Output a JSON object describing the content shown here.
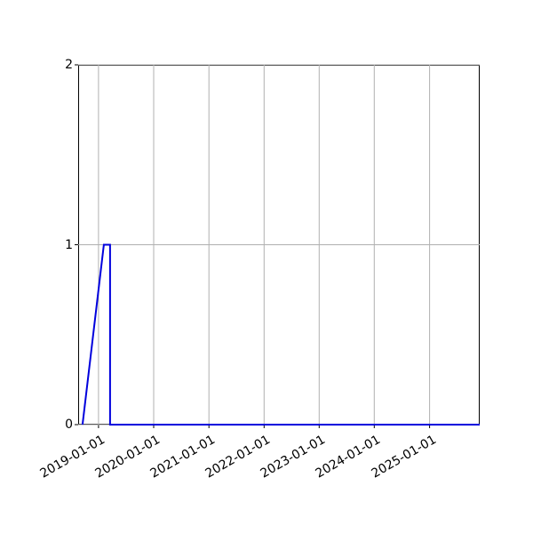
{
  "chart_data": {
    "type": "line",
    "title": "",
    "xlabel": "",
    "ylabel": "",
    "grid": true,
    "legend": null,
    "xlim": [
      "2018-08-19",
      "2025-11-29"
    ],
    "ylim": [
      0,
      2
    ],
    "x_tick_labels": [
      "2019-01-01",
      "2020-01-01",
      "2021-01-01",
      "2022-01-01",
      "2023-01-01",
      "2024-01-01",
      "2025-01-01"
    ],
    "y_ticks": [
      0,
      1,
      2
    ],
    "y_tick_labels": [
      "0",
      "1",
      "2"
    ],
    "x_tick_rotation_deg": 30,
    "series": [
      {
        "name": "series-1",
        "color": "#0000dd",
        "linewidth": 2,
        "points": [
          [
            "2018-09-17",
            0
          ],
          [
            "2019-02-05",
            1
          ],
          [
            "2019-03-18",
            1
          ],
          [
            "2019-03-18",
            0
          ],
          [
            "2025-11-29",
            0
          ]
        ]
      }
    ]
  },
  "colors": {
    "background": "#ffffff",
    "axis": "#000000",
    "grid": "#b0b0b0"
  }
}
